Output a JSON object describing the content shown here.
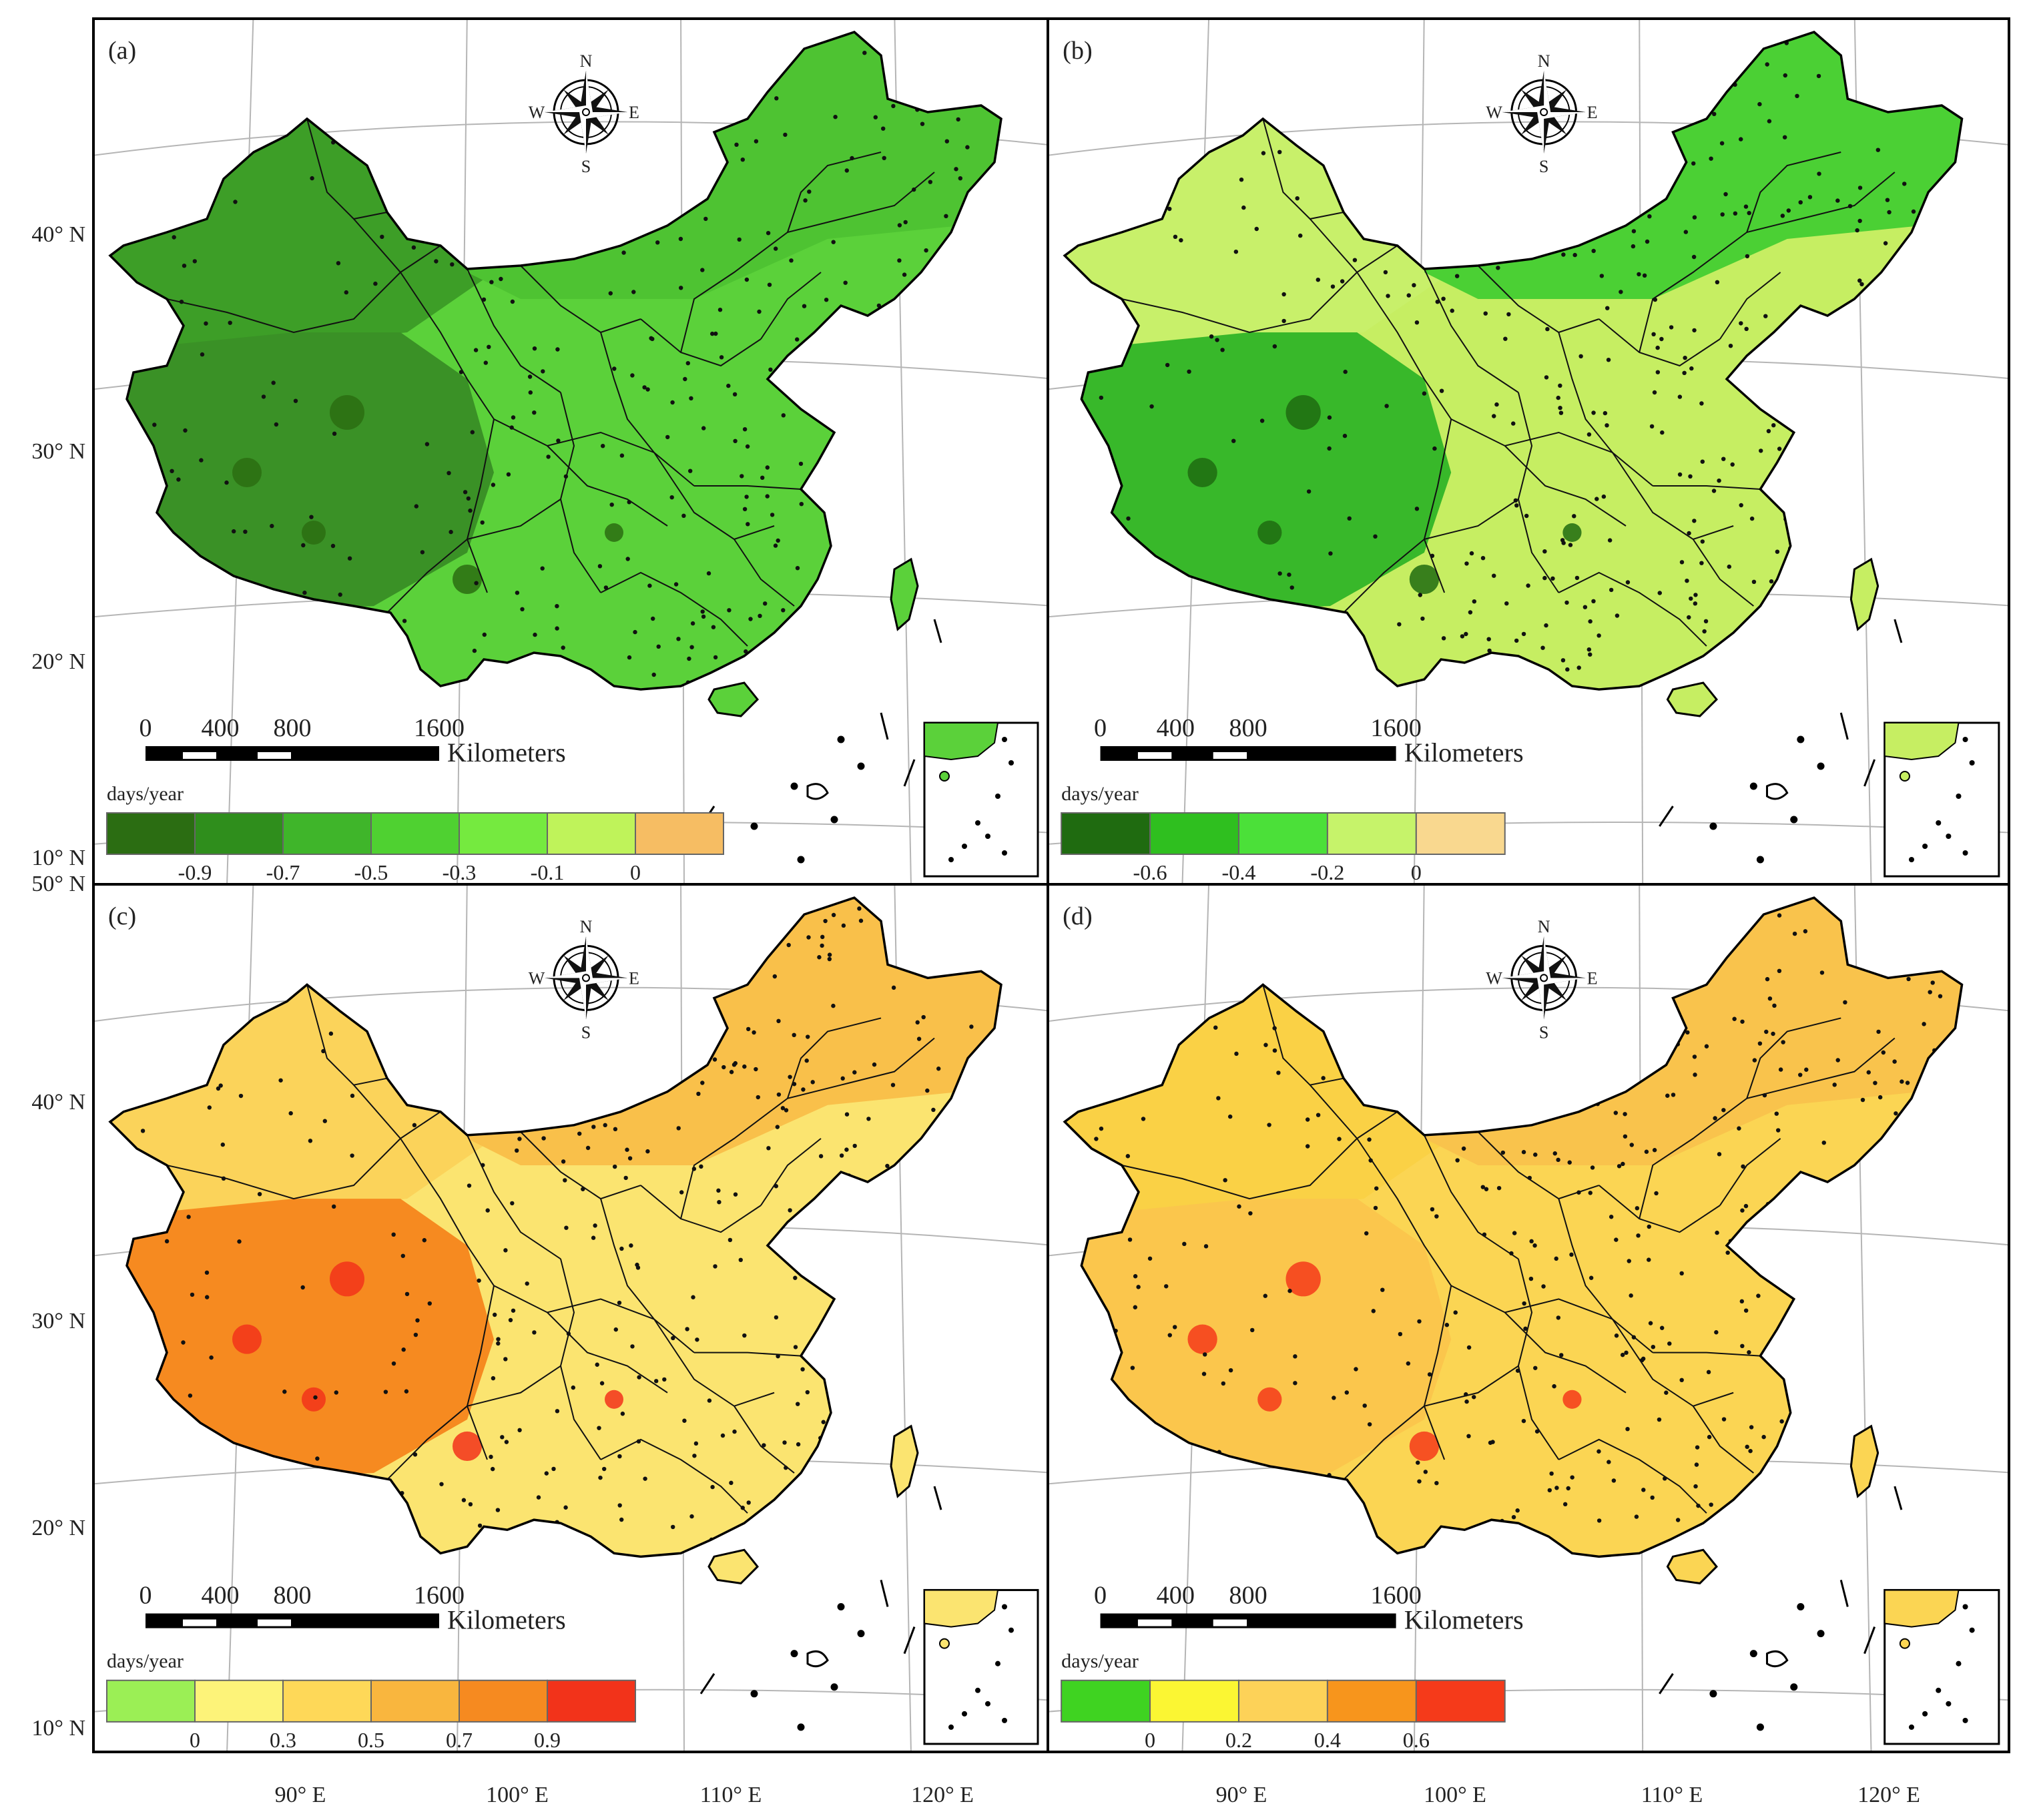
{
  "figure": {
    "lat_labels_top": [
      "40° N",
      "30° N",
      "20° N",
      "10° N"
    ],
    "lat_labels_bottom": [
      "50° N",
      "40° N",
      "30° N",
      "20° N",
      "10° N"
    ],
    "lon_labels": [
      "90° E",
      "100° E",
      "110° E",
      "120° E"
    ]
  },
  "compass": {
    "n": "N",
    "s": "S",
    "e": "E",
    "w": "W",
    "icon": "compass-rose-icon"
  },
  "scalebar": {
    "ticks": [
      "0",
      "400",
      "800",
      "1600"
    ],
    "unit": "Kilometers"
  },
  "colors": {
    "border": "#000000",
    "water": "#ffffff",
    "station": "#111111"
  },
  "panels": [
    {
      "id": "a",
      "label": "(a)",
      "legend_title": "days/year",
      "legend_colors": [
        "#2b6d12",
        "#2f8e1c",
        "#3fb52a",
        "#4fd131",
        "#75ea3f",
        "#bff35a",
        "#f6bd63"
      ],
      "legend_ticks": [
        "-0.9",
        "-0.7",
        "-0.5",
        "-0.3",
        "-0.1",
        "0"
      ],
      "fill_west": "#3d9e27",
      "fill_north": "#4ec332",
      "fill_east": "#5bd13a",
      "fill_tibet": "#3a9126",
      "hotspot": "#2b6d12"
    },
    {
      "id": "b",
      "label": "(b)",
      "legend_title": "days/year",
      "legend_colors": [
        "#1f6b10",
        "#2fbf1f",
        "#4be039",
        "#c6f36a",
        "#f9d88f"
      ],
      "legend_ticks": [
        "-0.6",
        "-0.4",
        "-0.2",
        "0"
      ],
      "fill_west": "#c8f06a",
      "fill_north": "#4bd034",
      "fill_east": "#c6ee62",
      "fill_tibet": "#38b82a",
      "hotspot": "#1f6b10"
    },
    {
      "id": "c",
      "label": "(c)",
      "legend_title": "days/year",
      "legend_colors": [
        "#9bef55",
        "#fdf379",
        "#fed858",
        "#f9b63e",
        "#f68a20",
        "#f2331a"
      ],
      "legend_ticks": [
        "0",
        "0.3",
        "0.5",
        "0.7",
        "0.9"
      ],
      "fill_west": "#fbd35a",
      "fill_north": "#f9c04a",
      "fill_east": "#fbe470",
      "fill_tibet": "#f68a20",
      "hotspot": "#f2331a"
    },
    {
      "id": "d",
      "label": "(d)",
      "legend_title": "days/year",
      "legend_colors": [
        "#3fd321",
        "#fbf633",
        "#fdd258",
        "#f7951c",
        "#f53a1a"
      ],
      "legend_ticks": [
        "0",
        "0.2",
        "0.4",
        "0.6"
      ],
      "fill_west": "#fad145",
      "fill_north": "#f9c34c",
      "fill_east": "#fbd553",
      "fill_tibet": "#fbc64c",
      "hotspot": "#f53a1a"
    }
  ]
}
